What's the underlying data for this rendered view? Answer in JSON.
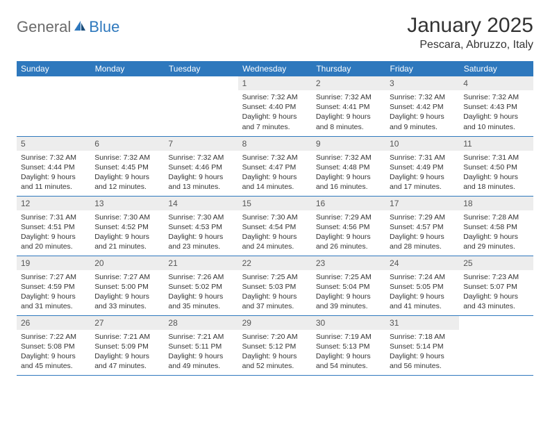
{
  "logo": {
    "text_general": "General",
    "text_blue": "Blue"
  },
  "title": {
    "month_year": "January 2025",
    "location": "Pescara, Abruzzo, Italy"
  },
  "colors": {
    "header_bg": "#2e78bd",
    "header_text": "#ffffff",
    "daynum_bg": "#ededed",
    "daynum_text": "#555555",
    "body_text": "#333333",
    "border": "#2e78bd",
    "logo_gray": "#6a6a6a",
    "logo_blue": "#2e78bd",
    "page_bg": "#ffffff"
  },
  "typography": {
    "title_fontsize": 30,
    "location_fontsize": 16,
    "weekday_fontsize": 12,
    "daynum_fontsize": 12,
    "content_fontsize": 10.5
  },
  "weekdays": [
    "Sunday",
    "Monday",
    "Tuesday",
    "Wednesday",
    "Thursday",
    "Friday",
    "Saturday"
  ],
  "weeks": [
    [
      null,
      null,
      null,
      {
        "n": "1",
        "sunrise": "7:32 AM",
        "sunset": "4:40 PM",
        "daylight": "9 hours and 7 minutes."
      },
      {
        "n": "2",
        "sunrise": "7:32 AM",
        "sunset": "4:41 PM",
        "daylight": "9 hours and 8 minutes."
      },
      {
        "n": "3",
        "sunrise": "7:32 AM",
        "sunset": "4:42 PM",
        "daylight": "9 hours and 9 minutes."
      },
      {
        "n": "4",
        "sunrise": "7:32 AM",
        "sunset": "4:43 PM",
        "daylight": "9 hours and 10 minutes."
      }
    ],
    [
      {
        "n": "5",
        "sunrise": "7:32 AM",
        "sunset": "4:44 PM",
        "daylight": "9 hours and 11 minutes."
      },
      {
        "n": "6",
        "sunrise": "7:32 AM",
        "sunset": "4:45 PM",
        "daylight": "9 hours and 12 minutes."
      },
      {
        "n": "7",
        "sunrise": "7:32 AM",
        "sunset": "4:46 PM",
        "daylight": "9 hours and 13 minutes."
      },
      {
        "n": "8",
        "sunrise": "7:32 AM",
        "sunset": "4:47 PM",
        "daylight": "9 hours and 14 minutes."
      },
      {
        "n": "9",
        "sunrise": "7:32 AM",
        "sunset": "4:48 PM",
        "daylight": "9 hours and 16 minutes."
      },
      {
        "n": "10",
        "sunrise": "7:31 AM",
        "sunset": "4:49 PM",
        "daylight": "9 hours and 17 minutes."
      },
      {
        "n": "11",
        "sunrise": "7:31 AM",
        "sunset": "4:50 PM",
        "daylight": "9 hours and 18 minutes."
      }
    ],
    [
      {
        "n": "12",
        "sunrise": "7:31 AM",
        "sunset": "4:51 PM",
        "daylight": "9 hours and 20 minutes."
      },
      {
        "n": "13",
        "sunrise": "7:30 AM",
        "sunset": "4:52 PM",
        "daylight": "9 hours and 21 minutes."
      },
      {
        "n": "14",
        "sunrise": "7:30 AM",
        "sunset": "4:53 PM",
        "daylight": "9 hours and 23 minutes."
      },
      {
        "n": "15",
        "sunrise": "7:30 AM",
        "sunset": "4:54 PM",
        "daylight": "9 hours and 24 minutes."
      },
      {
        "n": "16",
        "sunrise": "7:29 AM",
        "sunset": "4:56 PM",
        "daylight": "9 hours and 26 minutes."
      },
      {
        "n": "17",
        "sunrise": "7:29 AM",
        "sunset": "4:57 PM",
        "daylight": "9 hours and 28 minutes."
      },
      {
        "n": "18",
        "sunrise": "7:28 AM",
        "sunset": "4:58 PM",
        "daylight": "9 hours and 29 minutes."
      }
    ],
    [
      {
        "n": "19",
        "sunrise": "7:27 AM",
        "sunset": "4:59 PM",
        "daylight": "9 hours and 31 minutes."
      },
      {
        "n": "20",
        "sunrise": "7:27 AM",
        "sunset": "5:00 PM",
        "daylight": "9 hours and 33 minutes."
      },
      {
        "n": "21",
        "sunrise": "7:26 AM",
        "sunset": "5:02 PM",
        "daylight": "9 hours and 35 minutes."
      },
      {
        "n": "22",
        "sunrise": "7:25 AM",
        "sunset": "5:03 PM",
        "daylight": "9 hours and 37 minutes."
      },
      {
        "n": "23",
        "sunrise": "7:25 AM",
        "sunset": "5:04 PM",
        "daylight": "9 hours and 39 minutes."
      },
      {
        "n": "24",
        "sunrise": "7:24 AM",
        "sunset": "5:05 PM",
        "daylight": "9 hours and 41 minutes."
      },
      {
        "n": "25",
        "sunrise": "7:23 AM",
        "sunset": "5:07 PM",
        "daylight": "9 hours and 43 minutes."
      }
    ],
    [
      {
        "n": "26",
        "sunrise": "7:22 AM",
        "sunset": "5:08 PM",
        "daylight": "9 hours and 45 minutes."
      },
      {
        "n": "27",
        "sunrise": "7:21 AM",
        "sunset": "5:09 PM",
        "daylight": "9 hours and 47 minutes."
      },
      {
        "n": "28",
        "sunrise": "7:21 AM",
        "sunset": "5:11 PM",
        "daylight": "9 hours and 49 minutes."
      },
      {
        "n": "29",
        "sunrise": "7:20 AM",
        "sunset": "5:12 PM",
        "daylight": "9 hours and 52 minutes."
      },
      {
        "n": "30",
        "sunrise": "7:19 AM",
        "sunset": "5:13 PM",
        "daylight": "9 hours and 54 minutes."
      },
      {
        "n": "31",
        "sunrise": "7:18 AM",
        "sunset": "5:14 PM",
        "daylight": "9 hours and 56 minutes."
      },
      null
    ]
  ],
  "labels": {
    "sunrise": "Sunrise:",
    "sunset": "Sunset:",
    "daylight": "Daylight:"
  }
}
